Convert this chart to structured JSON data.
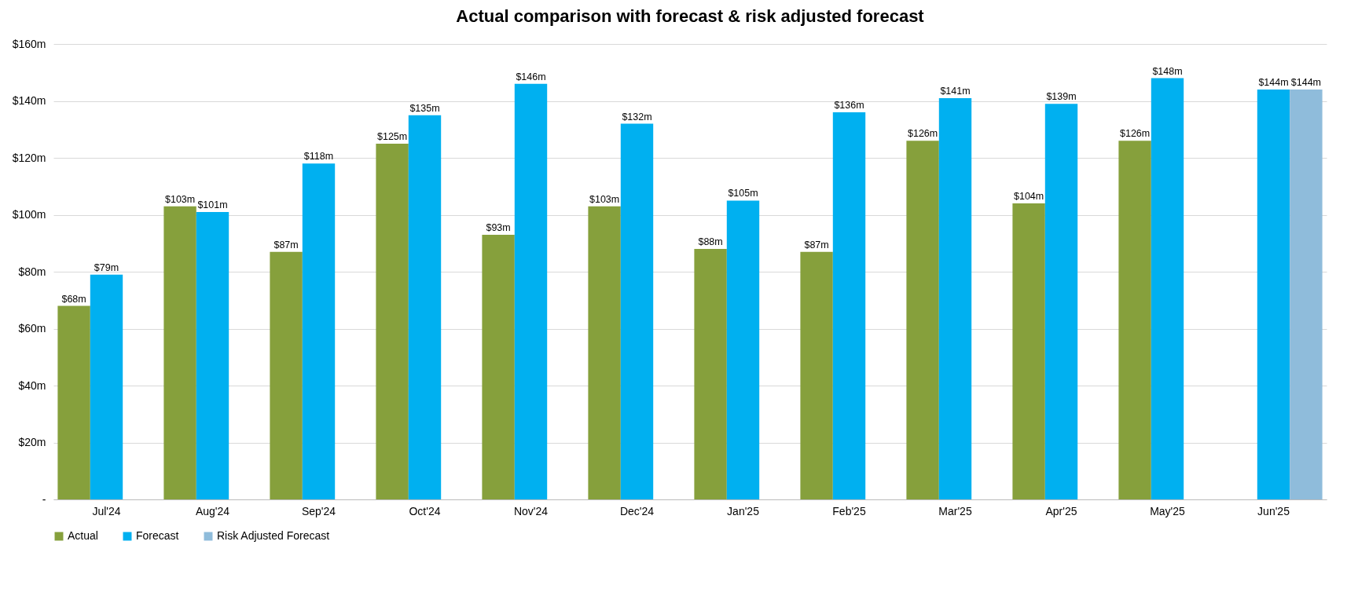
{
  "chart_data": {
    "type": "bar",
    "title": "Actual comparison with forecast & risk adjusted forecast",
    "categories": [
      "Jul'24",
      "Aug'24",
      "Sep'24",
      "Oct'24",
      "Nov'24",
      "Dec'24",
      "Jan'25",
      "Feb'25",
      "Mar'25",
      "Apr'25",
      "May'25",
      "Jun'25"
    ],
    "series": [
      {
        "name": "Actual",
        "color": "#86a03c",
        "values": [
          68,
          103,
          87,
          125,
          93,
          103,
          88,
          87,
          126,
          104,
          126,
          null
        ],
        "value_labels": [
          "$68m",
          "$103m",
          "$87m",
          "$125m",
          "$93m",
          "$103m",
          "$88m",
          "$87m",
          "$126m",
          "$104m",
          "$126m",
          null
        ]
      },
      {
        "name": "Forecast",
        "color": "#00b0f0",
        "values": [
          79,
          101,
          118,
          135,
          146,
          132,
          105,
          136,
          141,
          139,
          148,
          144
        ],
        "value_labels": [
          "$79m",
          "$101m",
          "$118m",
          "$135m",
          "$146m",
          "$132m",
          "$105m",
          "$136m",
          "$141m",
          "$139m",
          "$148m",
          "$144m"
        ]
      },
      {
        "name": "Risk Adjusted Forecast",
        "color": "#8fbcdb",
        "values": [
          null,
          null,
          null,
          null,
          null,
          null,
          null,
          null,
          null,
          null,
          null,
          144
        ],
        "value_labels": [
          null,
          null,
          null,
          null,
          null,
          null,
          null,
          null,
          null,
          null,
          null,
          "$144m"
        ]
      }
    ],
    "ylim": [
      0,
      160
    ],
    "yticks": [
      {
        "value": 0,
        "label": "-"
      },
      {
        "value": 20,
        "label": "$20m"
      },
      {
        "value": 40,
        "label": "$40m"
      },
      {
        "value": 60,
        "label": "$60m"
      },
      {
        "value": 80,
        "label": "$80m"
      },
      {
        "value": 100,
        "label": "$100m"
      },
      {
        "value": 120,
        "label": "$120m"
      },
      {
        "value": 140,
        "label": "$140m"
      },
      {
        "value": 160,
        "label": "$160m"
      }
    ],
    "grid": "y",
    "legend": "bottom"
  }
}
